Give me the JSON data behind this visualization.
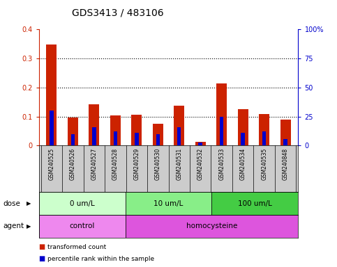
{
  "title": "GDS3413 / 483106",
  "samples": [
    "GSM240525",
    "GSM240526",
    "GSM240527",
    "GSM240528",
    "GSM240529",
    "GSM240530",
    "GSM240531",
    "GSM240532",
    "GSM240533",
    "GSM240534",
    "GSM240535",
    "GSM240848"
  ],
  "red_values": [
    0.348,
    0.096,
    0.142,
    0.104,
    0.105,
    0.075,
    0.138,
    0.012,
    0.213,
    0.124,
    0.108,
    0.09
  ],
  "blue_values_pct": [
    30,
    10,
    16,
    12,
    11,
    10,
    16,
    2.5,
    25,
    11,
    12,
    5.5
  ],
  "dose_groups": [
    {
      "label": "0 um/L",
      "start": 0,
      "end": 4,
      "color": "#ccffcc"
    },
    {
      "label": "10 um/L",
      "start": 4,
      "end": 8,
      "color": "#88ee88"
    },
    {
      "label": "100 um/L",
      "start": 8,
      "end": 12,
      "color": "#44cc44"
    }
  ],
  "agent_groups": [
    {
      "label": "control",
      "start": 0,
      "end": 4,
      "color": "#ee88ee"
    },
    {
      "label": "homocysteine",
      "start": 4,
      "end": 12,
      "color": "#dd55dd"
    }
  ],
  "ylim_left": [
    0,
    0.4
  ],
  "ylim_right": [
    0,
    100
  ],
  "yticks_left": [
    0.0,
    0.1,
    0.2,
    0.3,
    0.4
  ],
  "yticks_right": [
    0,
    25,
    50,
    75,
    100
  ],
  "ytick_labels_right": [
    "0",
    "25",
    "50",
    "75",
    "100%"
  ],
  "ytick_labels_left": [
    "0",
    "0.1",
    "0.2",
    "0.3",
    "0.4"
  ],
  "left_color": "#cc2200",
  "right_color": "#0000cc",
  "bar_width": 0.5,
  "blue_bar_width": 0.18,
  "legend_red": "transformed count",
  "legend_blue": "percentile rank within the sample",
  "dose_label": "dose",
  "agent_label": "agent",
  "title_fontsize": 10,
  "tick_fontsize": 7,
  "sample_fontsize": 5.5,
  "label_fontsize": 7.5,
  "dotted_lines": [
    0.1,
    0.2,
    0.3
  ]
}
